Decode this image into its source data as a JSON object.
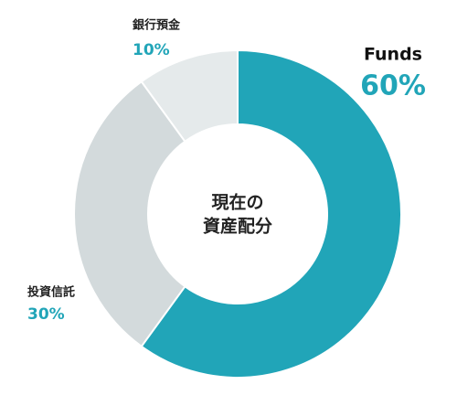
{
  "chart_data": {
    "type": "donut",
    "center_label": [
      "現在の",
      "資産配分"
    ],
    "categories": [
      "Funds",
      "投資信託",
      "銀行預金"
    ],
    "values": [
      60,
      30,
      10
    ],
    "value_labels": [
      "60%",
      "30%",
      "10%"
    ],
    "colors": [
      "#21a5b8",
      "#d3dadc",
      "#e5eaeb"
    ],
    "label_color": "#21a5b8"
  }
}
